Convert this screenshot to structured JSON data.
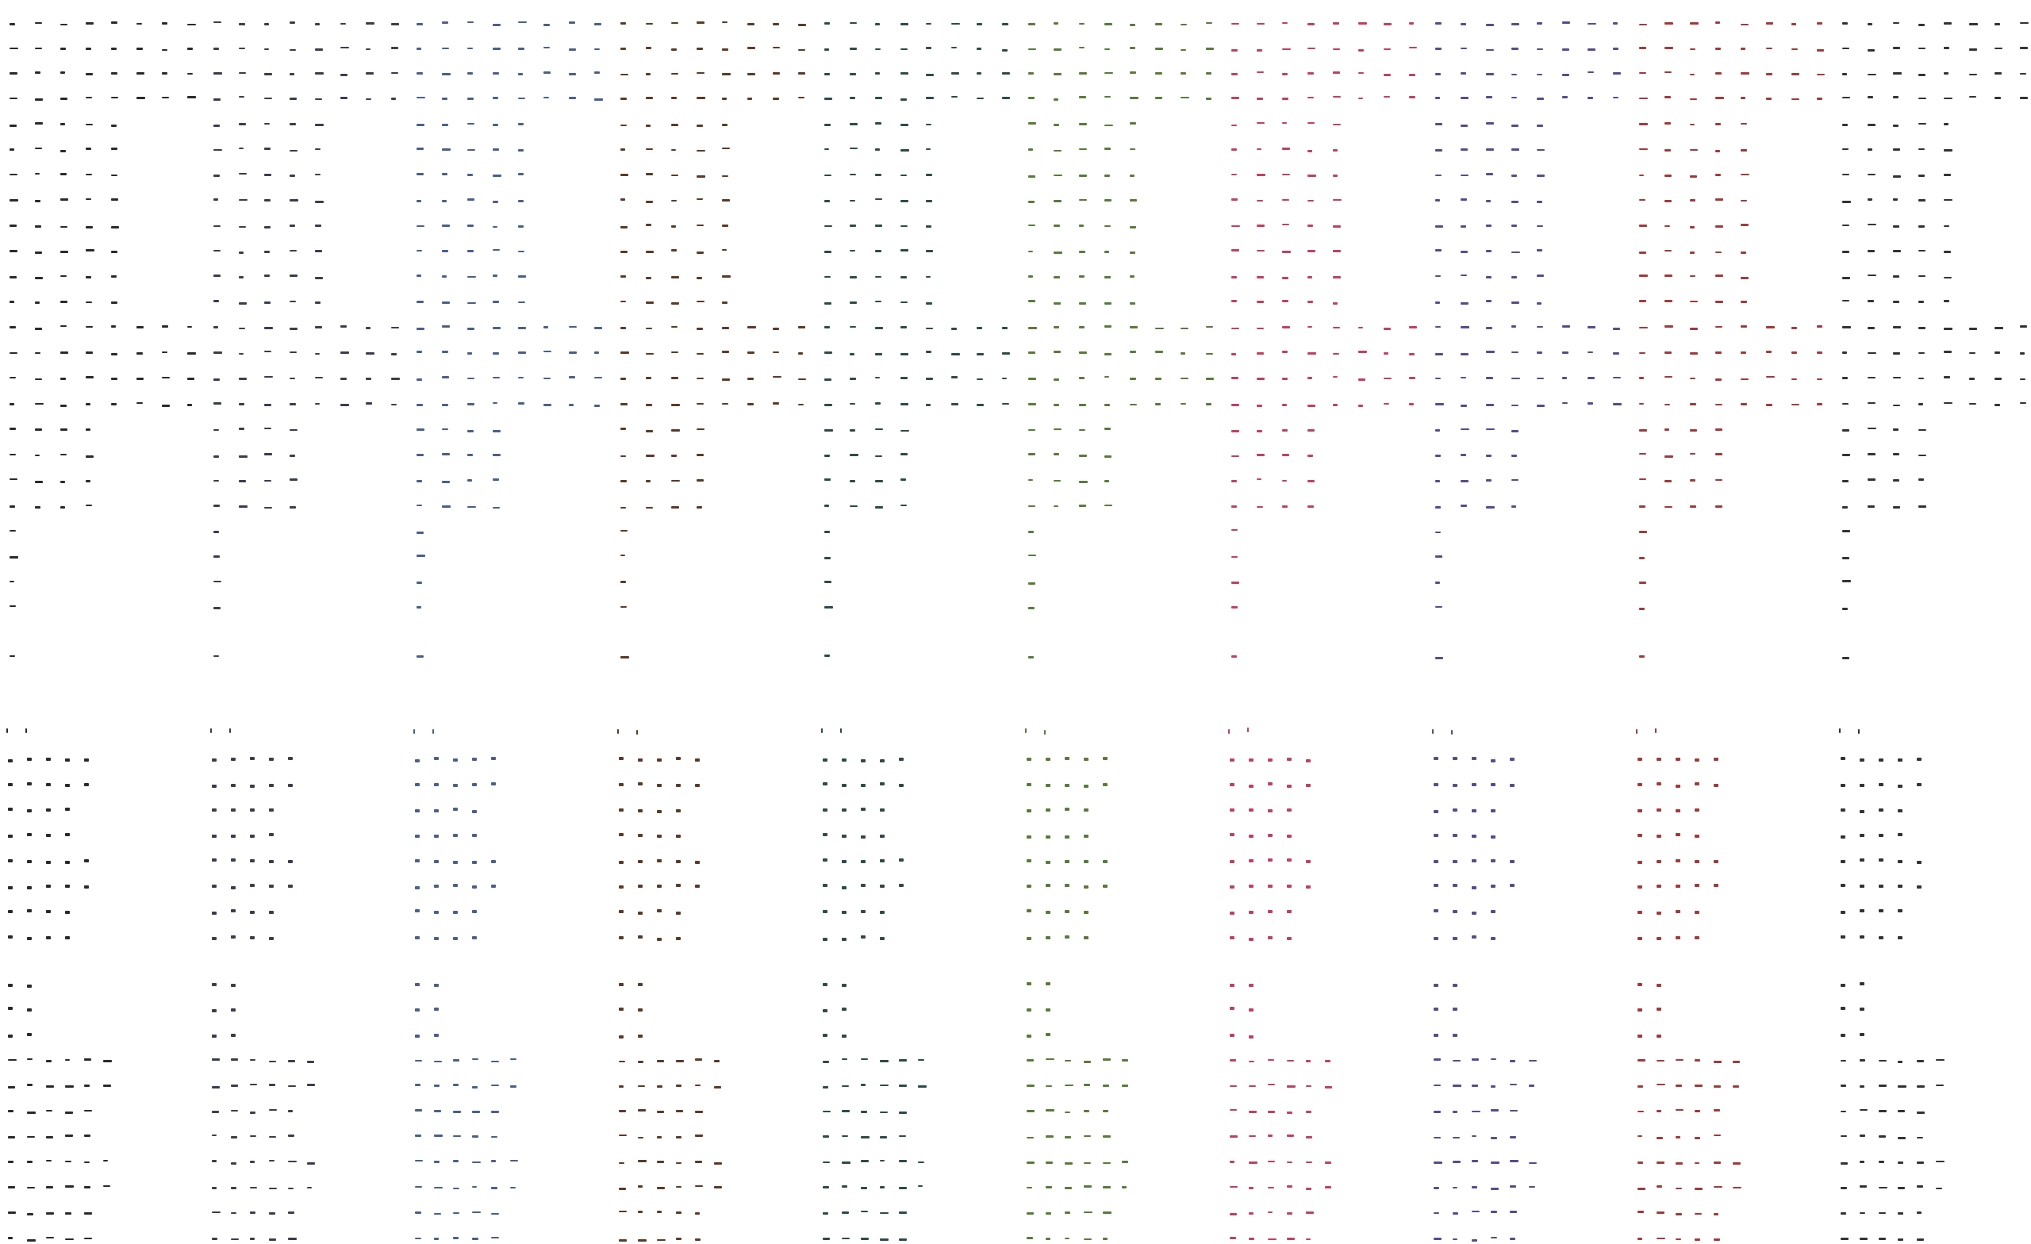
{
  "sprite_sheet": {
    "panels": [
      {
        "color": "#2a2a2a"
      },
      {
        "color": "#3a3d4a"
      },
      {
        "color": "#4a5f8a"
      },
      {
        "color": "#5a3a28"
      },
      {
        "color": "#2f4a48"
      },
      {
        "color": "#5a7a3a"
      },
      {
        "color": "#c04060"
      },
      {
        "color": "#5a4a8a"
      },
      {
        "color": "#a03a3a"
      },
      {
        "color": "#333333"
      }
    ]
  }
}
